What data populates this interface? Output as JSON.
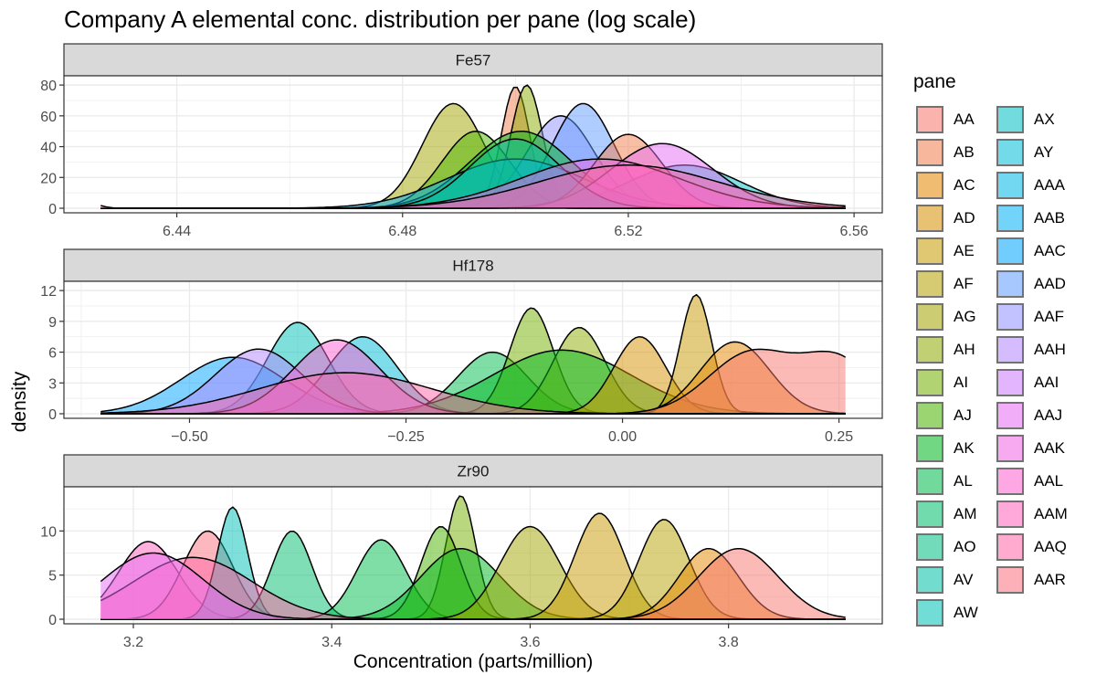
{
  "title": "Company A elemental conc. distribution per pane (log scale)",
  "chart_data": {
    "type": "area",
    "title": "Company A elemental conc. distribution per pane (log scale)",
    "xlabel": "Concentration (parts/million)",
    "ylabel": "density",
    "legend": {
      "title": "pane",
      "placement": "right",
      "entries": [
        "AA",
        "AB",
        "AC",
        "AD",
        "AE",
        "AF",
        "AG",
        "AH",
        "AI",
        "AJ",
        "AK",
        "AL",
        "AM",
        "AO",
        "AV",
        "AW",
        "AX",
        "AY",
        "AAA",
        "AAB",
        "AAC",
        "AAD",
        "AAF",
        "AAH",
        "AAI",
        "AAJ",
        "AAK",
        "AAL",
        "AAM",
        "AAQ",
        "AAR"
      ],
      "colors": [
        "#F8766D",
        "#F17D4E",
        "#E58700",
        "#D69100",
        "#C79A00",
        "#B5A100",
        "#A3A500",
        "#8EAB00",
        "#72B000",
        "#4BB400",
        "#00B81F",
        "#00BB4E",
        "#00BE6C",
        "#00C083",
        "#00C1A7",
        "#00C0B8",
        "#00BFC4",
        "#00BCD8",
        "#00B8E5",
        "#00B1F3",
        "#00A5FF",
        "#619CFF",
        "#8F91FF",
        "#B187FF",
        "#CD79FF",
        "#E76BF3",
        "#F365E6",
        "#FD61D1",
        "#FF62BC",
        "#FF66A8",
        "#FC717F"
      ]
    },
    "panels": [
      {
        "strip": "Fe57",
        "xlim": [
          6.42,
          6.565
        ],
        "ylim": [
          0,
          86
        ],
        "x_ticks": [
          6.44,
          6.48,
          6.52,
          6.56
        ],
        "x_tick_labels": [
          "6.44",
          "6.48",
          "6.52",
          "6.56"
        ],
        "y_ticks": [
          0,
          20,
          40,
          60,
          80
        ],
        "y_tick_labels": [
          "0",
          "20",
          "40",
          "60",
          "80"
        ],
        "curves": [
          {
            "pane": "AG",
            "peaks": [
              [
                6.489,
                68,
                0.0055
              ]
            ]
          },
          {
            "pane": "AB",
            "peaks": [
              [
                6.5,
                79,
                0.0025
              ]
            ]
          },
          {
            "pane": "AH",
            "peaks": [
              [
                6.502,
                80,
                0.0028
              ]
            ]
          },
          {
            "pane": "AAF",
            "peaks": [
              [
                6.508,
                60,
                0.006
              ]
            ]
          },
          {
            "pane": "AAD",
            "peaks": [
              [
                6.512,
                68,
                0.0055
              ]
            ]
          },
          {
            "pane": "AJ",
            "peaks": [
              [
                6.493,
                50,
                0.006
              ]
            ]
          },
          {
            "pane": "AK",
            "peaks": [
              [
                6.501,
                50,
                0.009
              ]
            ]
          },
          {
            "pane": "AX",
            "peaks": [
              [
                6.53,
                28,
                0.01
              ]
            ]
          },
          {
            "pane": "AAB",
            "peaks": [
              [
                6.5,
                32,
                0.012
              ]
            ]
          },
          {
            "pane": "AB",
            "peaks": [
              [
                6.52,
                48,
                0.006
              ]
            ]
          },
          {
            "pane": "AAJ",
            "peaks": [
              [
                6.526,
                42,
                0.009
              ]
            ]
          },
          {
            "pane": "AV",
            "peaks": [
              [
                6.5,
                45,
                0.008
              ]
            ]
          },
          {
            "pane": "AAK",
            "peaks": [
              [
                6.515,
                32,
                0.014
              ]
            ]
          },
          {
            "pane": "AAQ",
            "peaks": [
              [
                6.52,
                28,
                0.016
              ]
            ]
          },
          {
            "pane": "AA",
            "peaks": [
              [
                6.424,
                4,
                0.002
              ],
              [
                6.562,
                4,
                0.002
              ]
            ]
          }
        ]
      },
      {
        "strip": "Hf178",
        "xlim": [
          -0.645,
          0.3
        ],
        "ylim": [
          0,
          12.9
        ],
        "x_ticks": [
          -0.5,
          -0.25,
          0.0,
          0.25
        ],
        "x_tick_labels": [
          "−0.50",
          "−0.25",
          "0.00",
          "0.25"
        ],
        "y_ticks": [
          0,
          3,
          6,
          9,
          12
        ],
        "y_tick_labels": [
          "0",
          "3",
          "6",
          "9",
          "12"
        ],
        "curves": [
          {
            "pane": "AW",
            "peaks": [
              [
                -0.375,
                8.9,
                0.035
              ]
            ]
          },
          {
            "pane": "AAC",
            "peaks": [
              [
                -0.45,
                5.5,
                0.06
              ]
            ]
          },
          {
            "pane": "AY",
            "peaks": [
              [
                -0.3,
                7.5,
                0.04
              ]
            ]
          },
          {
            "pane": "AL",
            "peaks": [
              [
                -0.15,
                6,
                0.04
              ]
            ]
          },
          {
            "pane": "AI",
            "peaks": [
              [
                -0.105,
                10.3,
                0.025
              ]
            ]
          },
          {
            "pane": "AH",
            "peaks": [
              [
                -0.05,
                8.4,
                0.03
              ]
            ]
          },
          {
            "pane": "AK",
            "peaks": [
              [
                -0.07,
                6.2,
                0.08
              ]
            ]
          },
          {
            "pane": "AD",
            "peaks": [
              [
                0.02,
                7.5,
                0.03
              ]
            ]
          },
          {
            "pane": "AE",
            "peaks": [
              [
                0.085,
                11.6,
                0.018
              ]
            ]
          },
          {
            "pane": "AC",
            "peaks": [
              [
                0.13,
                7,
                0.04
              ]
            ]
          },
          {
            "pane": "AA",
            "peaks": [
              [
                0.25,
                5,
                0.04
              ],
              [
                0.15,
                6,
                0.05
              ]
            ]
          },
          {
            "pane": "AAH",
            "peaks": [
              [
                -0.42,
                6.3,
                0.05
              ]
            ]
          },
          {
            "pane": "AAL",
            "peaks": [
              [
                -0.33,
                7.2,
                0.05
              ]
            ]
          },
          {
            "pane": "AAQ",
            "peaks": [
              [
                -0.32,
                4,
                0.1
              ]
            ]
          },
          {
            "pane": "AAM",
            "peaks": [
              [
                -0.62,
                0.4,
                0.01
              ]
            ]
          }
        ]
      },
      {
        "strip": "Zr90",
        "xlim": [
          3.13,
          3.955
        ],
        "ylim": [
          0,
          15
        ],
        "x_ticks": [
          3.2,
          3.4,
          3.6,
          3.8
        ],
        "x_tick_labels": [
          "3.2",
          "3.4",
          "3.6",
          "3.8"
        ],
        "y_ticks": [
          0,
          5,
          10
        ],
        "y_tick_labels": [
          "0",
          "5",
          "10"
        ],
        "curves": [
          {
            "pane": "AAM",
            "peaks": [
              [
                3.215,
                8.8,
                0.03
              ]
            ]
          },
          {
            "pane": "AAR",
            "peaks": [
              [
                3.275,
                10,
                0.025
              ]
            ]
          },
          {
            "pane": "AW",
            "peaks": [
              [
                3.3,
                12.7,
                0.015
              ]
            ]
          },
          {
            "pane": "AM",
            "peaks": [
              [
                3.36,
                10,
                0.02
              ]
            ]
          },
          {
            "pane": "AL",
            "peaks": [
              [
                3.45,
                9,
                0.025
              ]
            ]
          },
          {
            "pane": "AI",
            "peaks": [
              [
                3.53,
                14,
                0.015
              ]
            ]
          },
          {
            "pane": "AJ",
            "peaks": [
              [
                3.51,
                10.5,
                0.02
              ]
            ]
          },
          {
            "pane": "AK",
            "peaks": [
              [
                3.53,
                8,
                0.04
              ]
            ]
          },
          {
            "pane": "AG",
            "peaks": [
              [
                3.6,
                10.5,
                0.03
              ]
            ]
          },
          {
            "pane": "AE",
            "peaks": [
              [
                3.67,
                12,
                0.025
              ]
            ]
          },
          {
            "pane": "AF",
            "peaks": [
              [
                3.735,
                11.3,
                0.025
              ]
            ]
          },
          {
            "pane": "AC",
            "peaks": [
              [
                3.78,
                8,
                0.03
              ]
            ]
          },
          {
            "pane": "AA",
            "peaks": [
              [
                3.81,
                8,
                0.04
              ]
            ]
          },
          {
            "pane": "AAQ",
            "peaks": [
              [
                3.26,
                7,
                0.06
              ]
            ]
          },
          {
            "pane": "AAJ",
            "peaks": [
              [
                3.22,
                7.5,
                0.05
              ]
            ]
          }
        ]
      }
    ]
  }
}
